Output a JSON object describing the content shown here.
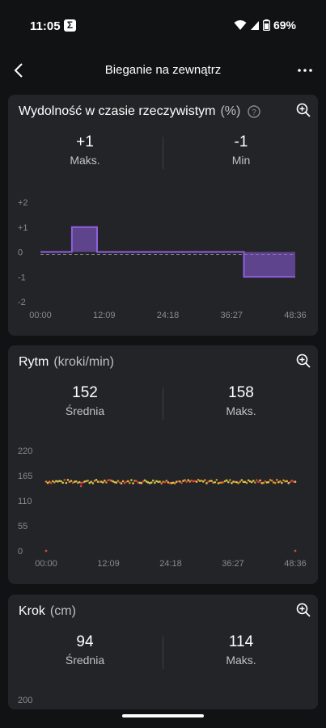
{
  "status_bar": {
    "time": "11:05",
    "app_icon": "Σ",
    "battery": "69%"
  },
  "header": {
    "title": "Bieganie na zewnątrz"
  },
  "cards": {
    "performance": {
      "title": "Wydolność w czasie rzeczywistym",
      "unit": "(%)",
      "stat_left": {
        "value": "+1",
        "label": "Maks."
      },
      "stat_right": {
        "value": "-1",
        "label": "Min"
      }
    },
    "cadence": {
      "title": "Rytm",
      "unit": "(kroki/min)",
      "stat_left": {
        "value": "152",
        "label": "Średnia"
      },
      "stat_right": {
        "value": "158",
        "label": "Maks."
      }
    },
    "stride": {
      "title": "Krok",
      "unit": "(cm)",
      "stat_left": {
        "value": "94",
        "label": "Średnia"
      },
      "stat_right": {
        "value": "114",
        "label": "Maks."
      },
      "partial_tick": "200"
    }
  },
  "chart_data": [
    {
      "type": "area",
      "yticks": [
        "+2",
        "+1",
        "0",
        "-1",
        "-2"
      ],
      "ylim": [
        -2,
        2
      ],
      "xticks": [
        "00:00",
        "12:09",
        "24:18",
        "36:27",
        "48:36"
      ],
      "xlim_minutes": [
        0,
        48.6
      ],
      "segments": [
        {
          "from": 0,
          "to": 6.0,
          "value": 0
        },
        {
          "from": 6.0,
          "to": 10.8,
          "value": 1
        },
        {
          "from": 10.8,
          "to": 38.8,
          "value": 0
        },
        {
          "from": 38.8,
          "to": 48.6,
          "value": -1
        }
      ],
      "color": "#8f5fe0"
    },
    {
      "type": "scatter",
      "yticks": [
        "220",
        "165",
        "110",
        "55",
        "0"
      ],
      "ylim": [
        0,
        220
      ],
      "xticks": [
        "00:00",
        "12:09",
        "24:18",
        "36:27",
        "48:36"
      ],
      "xlim_minutes": [
        0,
        48.6
      ],
      "typical_value": 152,
      "spread": 4,
      "colors": {
        "high": "#d4c44a",
        "mid": "#e0892f",
        "low": "#d9433b"
      }
    }
  ]
}
